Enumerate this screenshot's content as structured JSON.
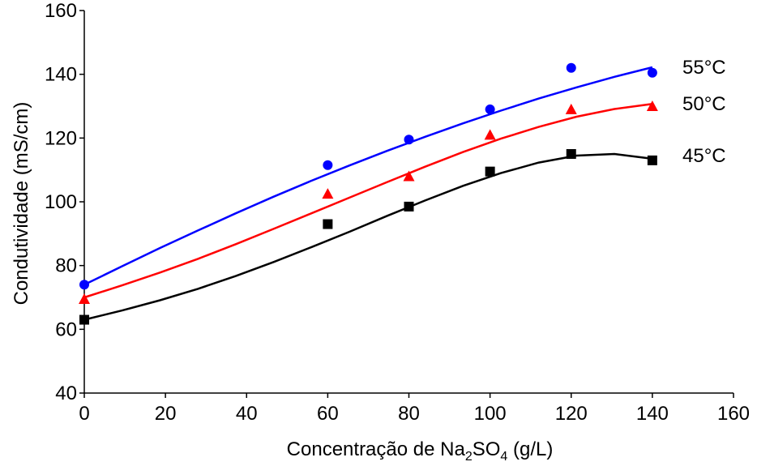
{
  "chart_data": {
    "type": "scatter",
    "title": "",
    "xlabel": {
      "prefix": "Concentração de Na",
      "sub1": "2",
      "mid": "SO",
      "sub2": "4",
      "suffix": " (g/L)"
    },
    "ylabel": "Condutividade (mS/cm)",
    "xlim": [
      0,
      160
    ],
    "ylim": [
      40,
      160
    ],
    "x_ticks": [
      "0",
      "20",
      "40",
      "60",
      "80",
      "100",
      "120",
      "140",
      "160"
    ],
    "y_ticks": [
      "40",
      "60",
      "80",
      "100",
      "120",
      "140",
      "160"
    ],
    "grid": false,
    "series": [
      {
        "name": "55°C",
        "color": "#0000ff",
        "marker": "circle",
        "x": [
          0,
          60,
          80,
          100,
          120,
          140
        ],
        "y": [
          74,
          111.5,
          119.5,
          129,
          142,
          140.5
        ],
        "fit": [
          74,
          79.8,
          85.5,
          91,
          96.4,
          101.6,
          106.6,
          111.4,
          116,
          120.4,
          124.6,
          128.6,
          132.4,
          135.9,
          139.2,
          142.2
        ]
      },
      {
        "name": "50°C",
        "color": "#ff0000",
        "marker": "triangle",
        "x": [
          0,
          60,
          80,
          100,
          120,
          140
        ],
        "y": [
          69.5,
          102.5,
          108,
          121,
          129,
          130
        ],
        "fit": [
          70,
          73.8,
          77.8,
          82.1,
          86.7,
          91.5,
          96.4,
          101.3,
          106.2,
          111,
          115.6,
          119.8,
          123.5,
          126.7,
          129.1,
          130.7
        ]
      },
      {
        "name": "45°C",
        "color": "#000000",
        "marker": "square",
        "x": [
          0,
          60,
          80,
          100,
          120,
          140
        ],
        "y": [
          63,
          93,
          98.5,
          109.5,
          115,
          113
        ],
        "fit": [
          63,
          65.9,
          69.1,
          72.7,
          76.7,
          81.1,
          85.8,
          90.6,
          95.6,
          100.4,
          105,
          109,
          112.3,
          114.5,
          115,
          113.5
        ]
      }
    ]
  }
}
